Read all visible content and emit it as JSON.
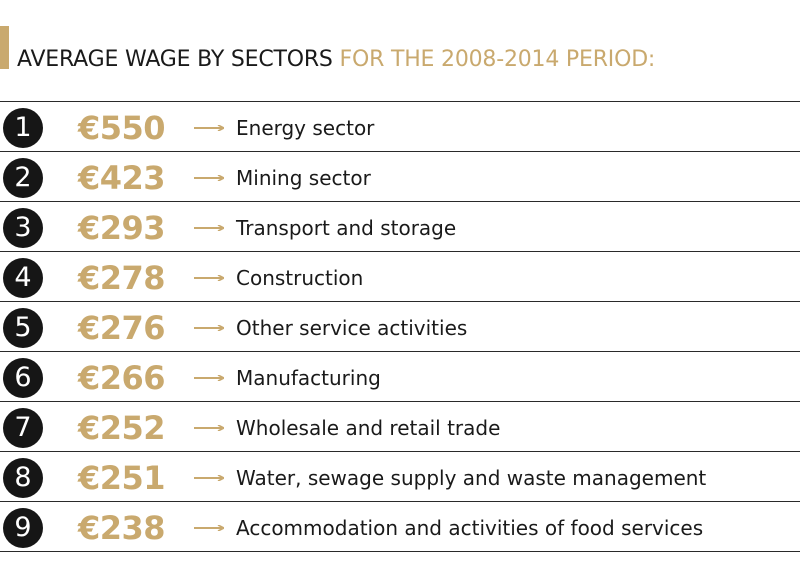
{
  "title": {
    "part1": "AVERAGE WAGE BY SECTORS",
    "part2": "FOR THE 2008-2014 PERIOD:"
  },
  "colors": {
    "accent": "#c9a96e",
    "text": "#1a1a1a",
    "circle": "#161616"
  },
  "chart_data": {
    "type": "table",
    "title": "AVERAGE WAGE BY SECTORS FOR THE 2008-2014 PERIOD:",
    "columns": [
      "rank",
      "value",
      "sector"
    ],
    "rows": [
      {
        "rank": "1",
        "value": "€550",
        "amount": 550,
        "sector": "Energy sector"
      },
      {
        "rank": "2",
        "value": "€423",
        "amount": 423,
        "sector": "Mining sector"
      },
      {
        "rank": "3",
        "value": "€293",
        "amount": 293,
        "sector": "Transport and storage"
      },
      {
        "rank": "4",
        "value": "€278",
        "amount": 278,
        "sector": "Construction"
      },
      {
        "rank": "5",
        "value": "€276",
        "amount": 276,
        "sector": "Other service activities"
      },
      {
        "rank": "6",
        "value": "€266",
        "amount": 266,
        "sector": "Manufacturing"
      },
      {
        "rank": "7",
        "value": "€252",
        "amount": 252,
        "sector": "Wholesale and retail trade"
      },
      {
        "rank": "8",
        "value": "€251",
        "amount": 251,
        "sector": "Water, sewage supply and waste management"
      },
      {
        "rank": "9",
        "value": "€238",
        "amount": 238,
        "sector": "Accommodation and activities of food services"
      }
    ]
  }
}
